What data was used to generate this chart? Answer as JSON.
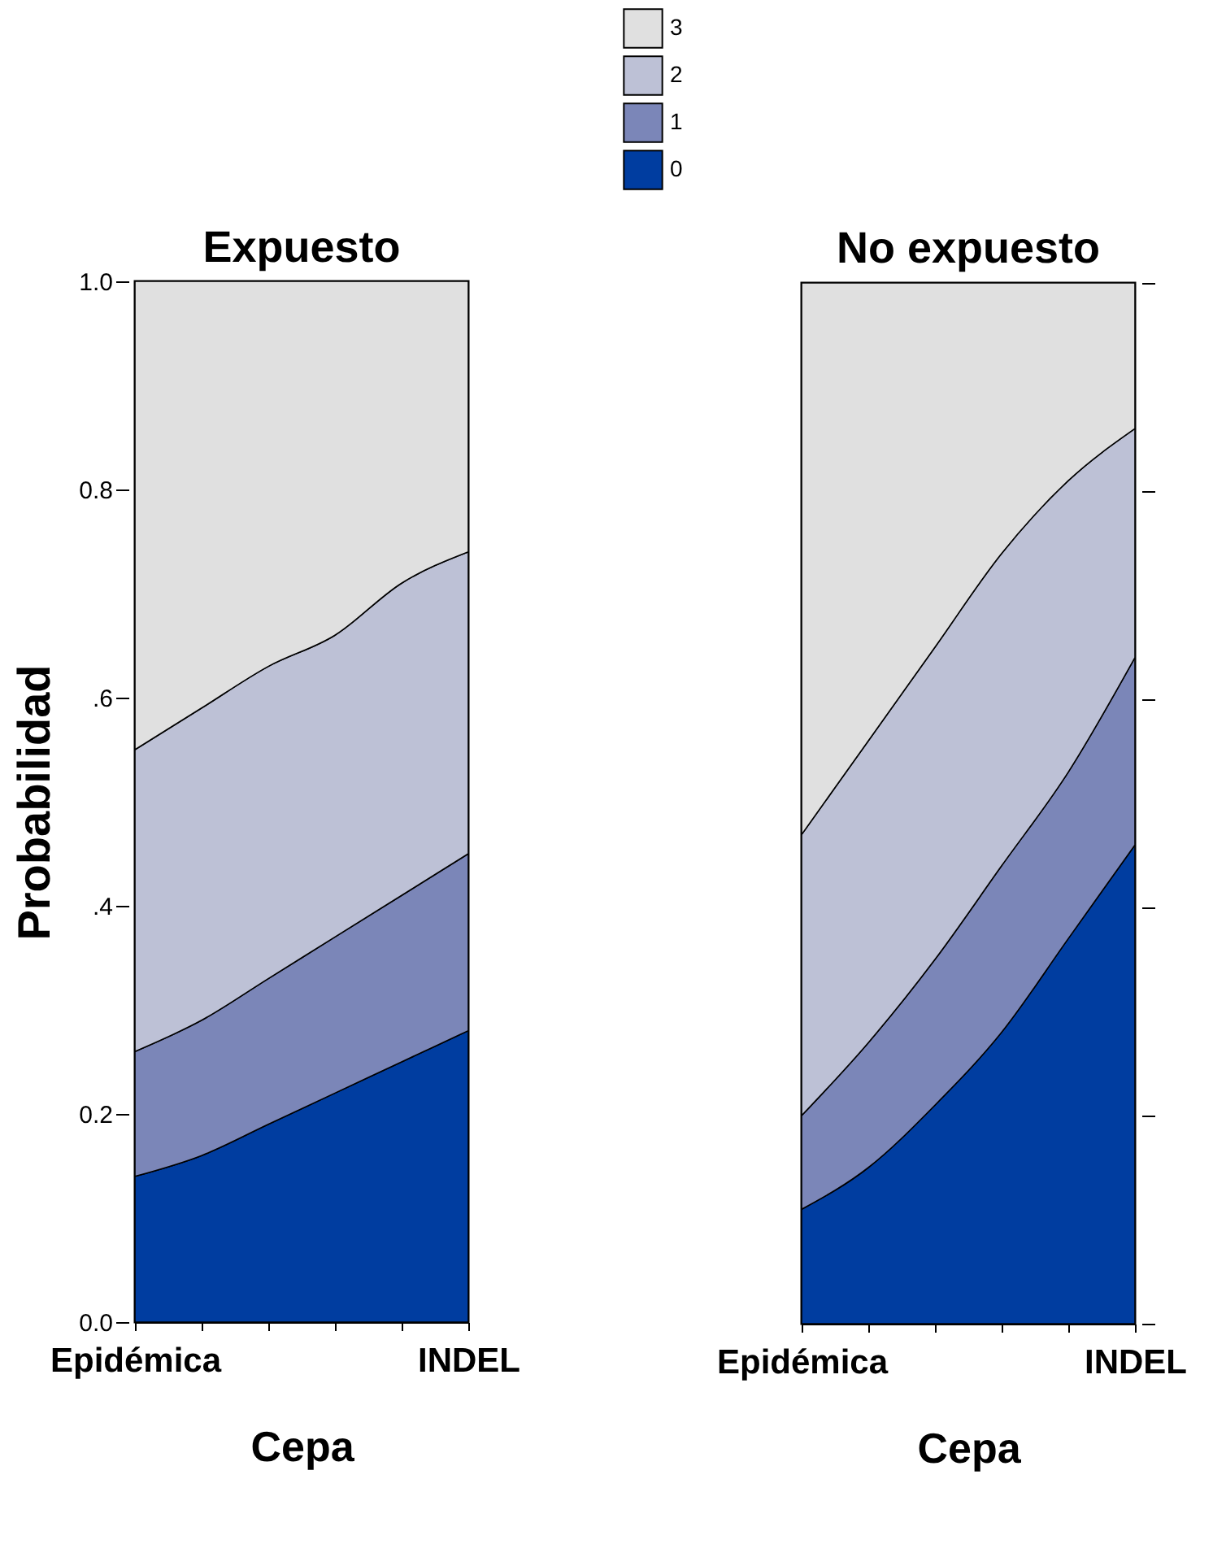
{
  "chart_data": [
    {
      "type": "area",
      "title": "Expuesto",
      "xlabel": "Cepa",
      "ylabel": "Probabilidad",
      "stacked": true,
      "legend": "top",
      "categories": [
        "Epidémica",
        null,
        null,
        null,
        null,
        "INDEL"
      ],
      "ylim": [
        0,
        1
      ],
      "yticks": [
        {
          "value": 0,
          "label": "0.0"
        },
        {
          "value": 0.2,
          "label": "0.2"
        },
        {
          "value": 0.4,
          "label": ".4"
        },
        {
          "value": 0.6,
          "label": ".6"
        },
        {
          "value": 0.8,
          "label": "0.8"
        },
        {
          "value": 1,
          "label": "1.0"
        }
      ],
      "series": [
        {
          "name": "0",
          "color": "#003da0",
          "values": [
            0.14,
            0.16,
            0.19,
            0.22,
            0.25,
            0.28
          ]
        },
        {
          "name": "1",
          "color": "#7b86b8",
          "values": [
            0.12,
            0.13,
            0.14,
            0.15,
            0.16,
            0.17
          ]
        },
        {
          "name": "2",
          "color": "#bdc1d6",
          "values": [
            0.29,
            0.3,
            0.3,
            0.29,
            0.3,
            0.29
          ]
        },
        {
          "name": "3",
          "color": "#e0e0e0",
          "values": [
            0.45,
            0.41,
            0.37,
            0.34,
            0.29,
            0.26
          ]
        }
      ]
    },
    {
      "type": "area",
      "title": "No expuesto",
      "xlabel": "Cepa",
      "stacked": true,
      "tick_labels": "x",
      "categories": [
        "Epidémica",
        null,
        null,
        null,
        null,
        "INDEL"
      ],
      "ylim": [
        0,
        1
      ],
      "yticks": [
        0,
        0.2,
        0.4,
        0.6,
        0.8,
        1
      ],
      "series": [
        {
          "color": "#003da0",
          "values": [
            0.11,
            0.15,
            0.21,
            0.28,
            0.37,
            0.46
          ]
        },
        {
          "color": "#7b86b8",
          "values": [
            0.09,
            0.12,
            0.14,
            0.16,
            0.16,
            0.18
          ]
        },
        {
          "color": "#bdc1d6",
          "values": [
            0.27,
            0.29,
            0.3,
            0.3,
            0.28,
            0.22
          ]
        },
        {
          "color": "#e0e0e0",
          "values": [
            0.53,
            0.44,
            0.35,
            0.26,
            0.19,
            0.14
          ]
        }
      ]
    }
  ]
}
